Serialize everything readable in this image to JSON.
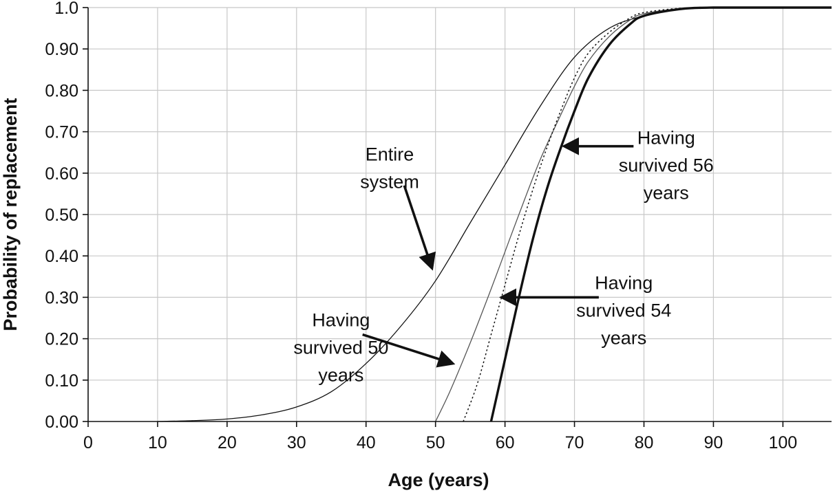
{
  "chart_data": {
    "type": "line",
    "title": "",
    "xlabel": "Age (years)",
    "ylabel": "Probability of replacement",
    "xlim": [
      0,
      107
    ],
    "ylim": [
      0,
      1.0
    ],
    "grid": true,
    "legend": "none",
    "x_ticks": [
      "0",
      "10",
      "20",
      "30",
      "40",
      "50",
      "60",
      "70",
      "80",
      "90",
      "100"
    ],
    "y_ticks": [
      "0.00",
      "0.10",
      "0.20",
      "0.30",
      "0.40",
      "0.50",
      "0.60",
      "0.70",
      "0.80",
      "0.90",
      "1.0"
    ],
    "series": [
      {
        "style": "thin",
        "x": [
          10,
          15,
          20,
          25,
          30,
          35,
          40,
          45,
          50,
          55,
          60,
          65,
          70,
          75,
          80,
          85,
          90,
          95,
          100,
          107
        ],
        "y": [
          0.0,
          0.002,
          0.006,
          0.016,
          0.035,
          0.072,
          0.14,
          0.23,
          0.34,
          0.48,
          0.62,
          0.76,
          0.88,
          0.95,
          0.98,
          0.995,
          0.999,
          1.0,
          1.0,
          1.0
        ]
      },
      {
        "style": "thin-gray",
        "x": [
          50,
          52,
          55,
          58,
          60,
          62,
          65,
          68,
          70,
          72,
          75,
          78,
          80,
          85,
          90,
          100,
          107
        ],
        "y": [
          0.0,
          0.07,
          0.19,
          0.32,
          0.41,
          0.5,
          0.63,
          0.74,
          0.81,
          0.87,
          0.93,
          0.97,
          0.985,
          0.997,
          1.0,
          1.0,
          1.0
        ]
      },
      {
        "style": "dotted",
        "x": [
          54,
          56,
          58,
          60,
          62,
          64,
          66,
          68,
          70,
          72,
          75,
          78,
          80,
          85,
          90,
          100,
          107
        ],
        "y": [
          0.0,
          0.09,
          0.21,
          0.33,
          0.45,
          0.56,
          0.66,
          0.75,
          0.83,
          0.89,
          0.94,
          0.975,
          0.988,
          0.998,
          1.0,
          1.0,
          1.0
        ]
      },
      {
        "style": "thick",
        "x": [
          58,
          60,
          62,
          64,
          66,
          68,
          70,
          72,
          75,
          78,
          80,
          85,
          90,
          100,
          107
        ],
        "y": [
          0.0,
          0.15,
          0.3,
          0.44,
          0.56,
          0.66,
          0.75,
          0.83,
          0.91,
          0.96,
          0.98,
          0.996,
          1.0,
          1.0,
          1.0
        ]
      }
    ],
    "annotations": [
      {
        "lines": [
          "Entire",
          "system"
        ],
        "text_at": [
          43.4,
          0.63
        ],
        "arrow_from": [
          45.5,
          0.57
        ],
        "arrow_to": [
          49.5,
          0.37
        ]
      },
      {
        "lines": [
          "Having",
          "survived 50",
          "years"
        ],
        "text_at": [
          36.4,
          0.23
        ],
        "arrow_from": [
          39.5,
          0.21
        ],
        "arrow_to": [
          52.5,
          0.14
        ]
      },
      {
        "lines": [
          "Having",
          "survived 54",
          "years"
        ],
        "text_at": [
          77.1,
          0.32
        ],
        "arrow_from": [
          73.5,
          0.3
        ],
        "arrow_to": [
          59.5,
          0.3
        ]
      },
      {
        "lines": [
          "Having",
          "survived 56",
          "years"
        ],
        "text_at": [
          83.2,
          0.67
        ],
        "arrow_from": [
          78.5,
          0.665
        ],
        "arrow_to": [
          68.5,
          0.665
        ]
      }
    ]
  }
}
